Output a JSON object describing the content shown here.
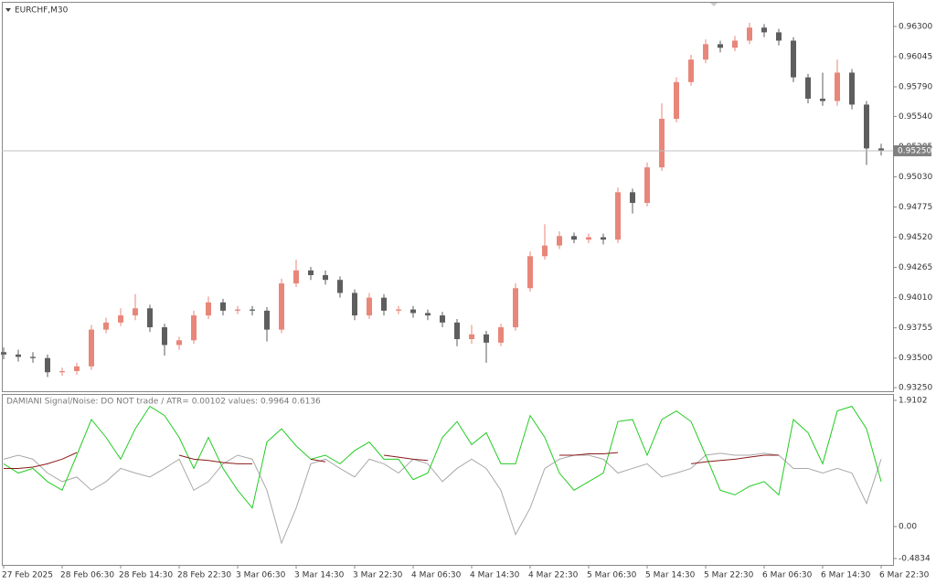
{
  "chart_data": [
    {
      "type": "candlestick",
      "title": "EURCHF,M30",
      "open": [
        0.9355,
        0.9353,
        0.9351,
        0.935,
        0.9338,
        0.9339,
        0.9343,
        0.9374,
        0.938,
        0.9386,
        0.9392,
        0.9376,
        0.9361,
        0.9365,
        0.9386,
        0.9397,
        0.939,
        0.9391,
        0.939,
        0.9374,
        0.9413,
        0.9424,
        0.942,
        0.9416,
        0.9405,
        0.9386,
        0.9401,
        0.939,
        0.9391,
        0.9388,
        0.9386,
        0.938,
        0.9366,
        0.937,
        0.9363,
        0.9376,
        0.9409,
        0.9436,
        0.9445,
        0.9453,
        0.945,
        0.9452,
        0.945,
        0.949,
        0.9481,
        0.9511,
        0.9552,
        0.9583,
        0.9602,
        0.9615,
        0.9612,
        0.9618,
        0.9629,
        0.9625,
        0.9618,
        0.9587,
        0.9569,
        0.9567,
        0.9591,
        0.9564,
        0.9527
      ],
      "high": [
        0.9359,
        0.9357,
        0.9355,
        0.9353,
        0.9342,
        0.9346,
        0.9378,
        0.9384,
        0.9392,
        0.9404,
        0.9395,
        0.9379,
        0.9368,
        0.939,
        0.9402,
        0.94,
        0.9394,
        0.9394,
        0.9393,
        0.9417,
        0.9433,
        0.9427,
        0.9424,
        0.9419,
        0.9408,
        0.9405,
        0.9404,
        0.9394,
        0.9394,
        0.9391,
        0.9389,
        0.9383,
        0.9378,
        0.9373,
        0.9379,
        0.9413,
        0.944,
        0.9463,
        0.9457,
        0.9456,
        0.9455,
        0.9455,
        0.9494,
        0.9493,
        0.9515,
        0.9565,
        0.9587,
        0.9606,
        0.9619,
        0.9618,
        0.9622,
        0.9633,
        0.9632,
        0.9628,
        0.9621,
        0.959,
        0.9591,
        0.9602,
        0.9594,
        0.9567,
        0.9531
      ],
      "low": [
        0.9349,
        0.9347,
        0.9346,
        0.9334,
        0.9335,
        0.9336,
        0.934,
        0.9371,
        0.9377,
        0.9382,
        0.9372,
        0.9352,
        0.9357,
        0.9362,
        0.9383,
        0.9386,
        0.9387,
        0.9386,
        0.9364,
        0.9371,
        0.941,
        0.9416,
        0.9412,
        0.9401,
        0.9382,
        0.9383,
        0.9386,
        0.9387,
        0.9384,
        0.9382,
        0.9376,
        0.936,
        0.9362,
        0.9346,
        0.936,
        0.9373,
        0.9406,
        0.9433,
        0.9442,
        0.9447,
        0.9447,
        0.9446,
        0.9447,
        0.9472,
        0.9478,
        0.9508,
        0.9549,
        0.958,
        0.9599,
        0.9608,
        0.9609,
        0.9615,
        0.9621,
        0.9614,
        0.9583,
        0.9565,
        0.9563,
        0.9563,
        0.956,
        0.9513,
        0.9521
      ],
      "close": [
        0.9353,
        0.9351,
        0.935,
        0.9338,
        0.9339,
        0.9343,
        0.9374,
        0.938,
        0.9386,
        0.9392,
        0.9376,
        0.9361,
        0.9365,
        0.9386,
        0.9397,
        0.939,
        0.9391,
        0.939,
        0.9374,
        0.9413,
        0.9424,
        0.942,
        0.9416,
        0.9405,
        0.9386,
        0.9401,
        0.939,
        0.9391,
        0.9388,
        0.9386,
        0.938,
        0.9366,
        0.937,
        0.9363,
        0.9376,
        0.9409,
        0.9436,
        0.9445,
        0.9453,
        0.945,
        0.9452,
        0.945,
        0.949,
        0.9481,
        0.9511,
        0.9552,
        0.9583,
        0.9602,
        0.9615,
        0.9612,
        0.9618,
        0.9629,
        0.9625,
        0.9618,
        0.9587,
        0.9569,
        0.9567,
        0.9591,
        0.9564,
        0.9527,
        0.9525
      ],
      "up_color": "#e8867a",
      "down_color": "#5e5e5e",
      "ylim": [
        0.9322,
        0.965
      ],
      "yticks": [
        {
          "value": 0.963,
          "label": "0.96300"
        },
        {
          "value": 0.96045,
          "label": "0.96045"
        },
        {
          "value": 0.9579,
          "label": "0.95790"
        },
        {
          "value": 0.9554,
          "label": "0.95540"
        },
        {
          "value": 0.95285,
          "label": "0.95285"
        },
        {
          "value": 0.9503,
          "label": "0.95030"
        },
        {
          "value": 0.94775,
          "label": "0.94775"
        },
        {
          "value": 0.9452,
          "label": "0.94520"
        },
        {
          "value": 0.94265,
          "label": "0.94265"
        },
        {
          "value": 0.9401,
          "label": "0.94010"
        },
        {
          "value": 0.93755,
          "label": "0.93755"
        },
        {
          "value": 0.935,
          "label": "0.93500"
        },
        {
          "value": 0.9325,
          "label": "0.93250"
        }
      ],
      "last_price": {
        "value": 0.9525,
        "label": "0.95250"
      }
    },
    {
      "type": "line",
      "title": "DAMIANI Signal/Noise: DO NOT trade  /  ATR= 0.00102     values: 0.9964 0.6136",
      "categories": [
        "27 Feb 2025",
        null,
        null,
        null,
        "28 Feb 06:30",
        null,
        null,
        null,
        "28 Feb 14:30",
        null,
        null,
        null,
        "28 Feb 22:30",
        null,
        null,
        null,
        "3 Mar 06:30",
        null,
        null,
        null,
        "3 Mar 14:30",
        null,
        null,
        null,
        "3 Mar 22:30",
        null,
        null,
        null,
        "4 Mar 06:30",
        null,
        null,
        null,
        "4 Mar 14:30",
        null,
        null,
        null,
        "4 Mar 22:30",
        null,
        null,
        null,
        "5 Mar 06:30",
        null,
        null,
        null,
        "5 Mar 14:30",
        null,
        null,
        null,
        "5 Mar 22:30",
        null,
        null,
        null,
        "6 Mar 06:30",
        null,
        null,
        null,
        "6 Mar 14:30",
        null,
        null,
        null,
        "6 Mar 22:30"
      ],
      "series": [
        {
          "color": "#a9a9a9",
          "values": [
            1.02,
            1.08,
            1.02,
            0.81,
            0.68,
            0.75,
            0.55,
            0.68,
            0.88,
            0.81,
            0.75,
            0.88,
            1.02,
            0.55,
            0.68,
            0.95,
            1.08,
            1.02,
            0.55,
            -0.25,
            0.28,
            0.95,
            1.02,
            0.88,
            0.75,
            1.02,
            0.95,
            0.81,
            1.02,
            0.95,
            0.68,
            0.88,
            1.02,
            0.88,
            0.55,
            -0.12,
            0.28,
            0.88,
            1.02,
            1.08,
            1.08,
            1.02,
            0.81,
            0.88,
            0.95,
            0.75,
            0.81,
            0.88,
            1.08,
            1.11,
            1.08,
            1.08,
            1.11,
            1.08,
            0.88,
            0.88,
            0.81,
            0.88,
            0.81,
            0.35,
            1.02
          ]
        },
        {
          "color": "#22cc22",
          "values": [
            0.95,
            0.81,
            0.88,
            0.68,
            0.55,
            1.08,
            1.62,
            1.35,
            1.02,
            1.48,
            1.82,
            1.68,
            1.35,
            0.88,
            1.35,
            0.88,
            0.55,
            0.28,
            1.28,
            1.48,
            1.22,
            1.02,
            1.08,
            0.95,
            1.15,
            1.28,
            1.02,
            1.02,
            0.71,
            0.81,
            1.35,
            1.59,
            1.24,
            1.42,
            0.95,
            0.95,
            1.68,
            1.35,
            0.81,
            0.55,
            0.68,
            0.81,
            1.59,
            1.62,
            1.08,
            1.62,
            1.75,
            1.59,
            1.08,
            0.55,
            0.48,
            0.61,
            0.68,
            0.48,
            1.62,
            1.42,
            0.95,
            1.75,
            1.82,
            1.48,
            0.68
          ]
        },
        {
          "color": "#8b1a1a",
          "values": [
            0.88,
            0.88,
            0.9,
            0.95,
            1.02,
            1.12,
            null,
            null,
            null,
            null,
            null,
            null,
            1.08,
            1.02,
            1.0,
            0.97,
            0.95,
            0.95,
            null,
            null,
            null,
            1.02,
            0.98,
            null,
            null,
            null,
            1.08,
            1.05,
            1.02,
            1.0,
            null,
            null,
            null,
            null,
            null,
            null,
            null,
            null,
            1.08,
            1.08,
            1.1,
            1.1,
            1.12,
            null,
            1.0,
            null,
            null,
            0.95,
            0.98,
            1.0,
            1.02,
            1.05,
            1.08,
            1.08,
            null,
            null,
            null,
            null,
            null,
            null,
            null
          ]
        }
      ],
      "ylim": [
        -0.4834,
        1.9102
      ],
      "yticks": [
        1.9102,
        {
          "value": 0,
          "label": "0.00"
        },
        -0.4834
      ]
    }
  ]
}
